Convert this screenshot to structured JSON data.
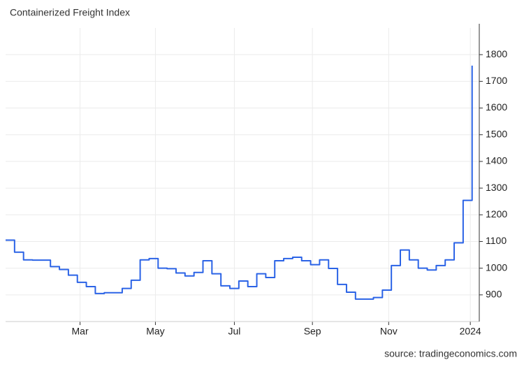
{
  "chart_data": {
    "type": "line",
    "title": "Containerized Freight Index",
    "source": "source: tradingeconomics.com",
    "values": [
      1105,
      1060,
      1031,
      1030,
      1030,
      1006,
      995,
      974,
      947,
      931,
      905,
      908,
      908,
      924,
      955,
      1031,
      1036,
      1000,
      998,
      982,
      971,
      984,
      1028,
      979,
      934,
      924,
      952,
      931,
      979,
      965,
      1028,
      1036,
      1041,
      1028,
      1013,
      1031,
      999,
      939,
      910,
      884,
      884,
      890,
      918,
      1010,
      1068,
      1031,
      1000,
      993,
      1010,
      1031,
      1095,
      1254,
      1759
    ],
    "color": "#2b63e6",
    "xlim": [
      0,
      52.8
    ],
    "xticks": [
      {
        "value": 8.3,
        "label": "Mar"
      },
      {
        "value": 16.7,
        "label": "May"
      },
      {
        "value": 25.5,
        "label": "Jul"
      },
      {
        "value": 34.2,
        "label": "Sep"
      },
      {
        "value": 42.7,
        "label": "Nov"
      },
      {
        "value": 51.8,
        "label": "2024"
      }
    ],
    "ylim": [
      800,
      1900
    ],
    "yticks": [
      900,
      1000,
      1100,
      1200,
      1300,
      1400,
      1500,
      1600,
      1700,
      1800
    ],
    "grid": true,
    "step": true
  }
}
